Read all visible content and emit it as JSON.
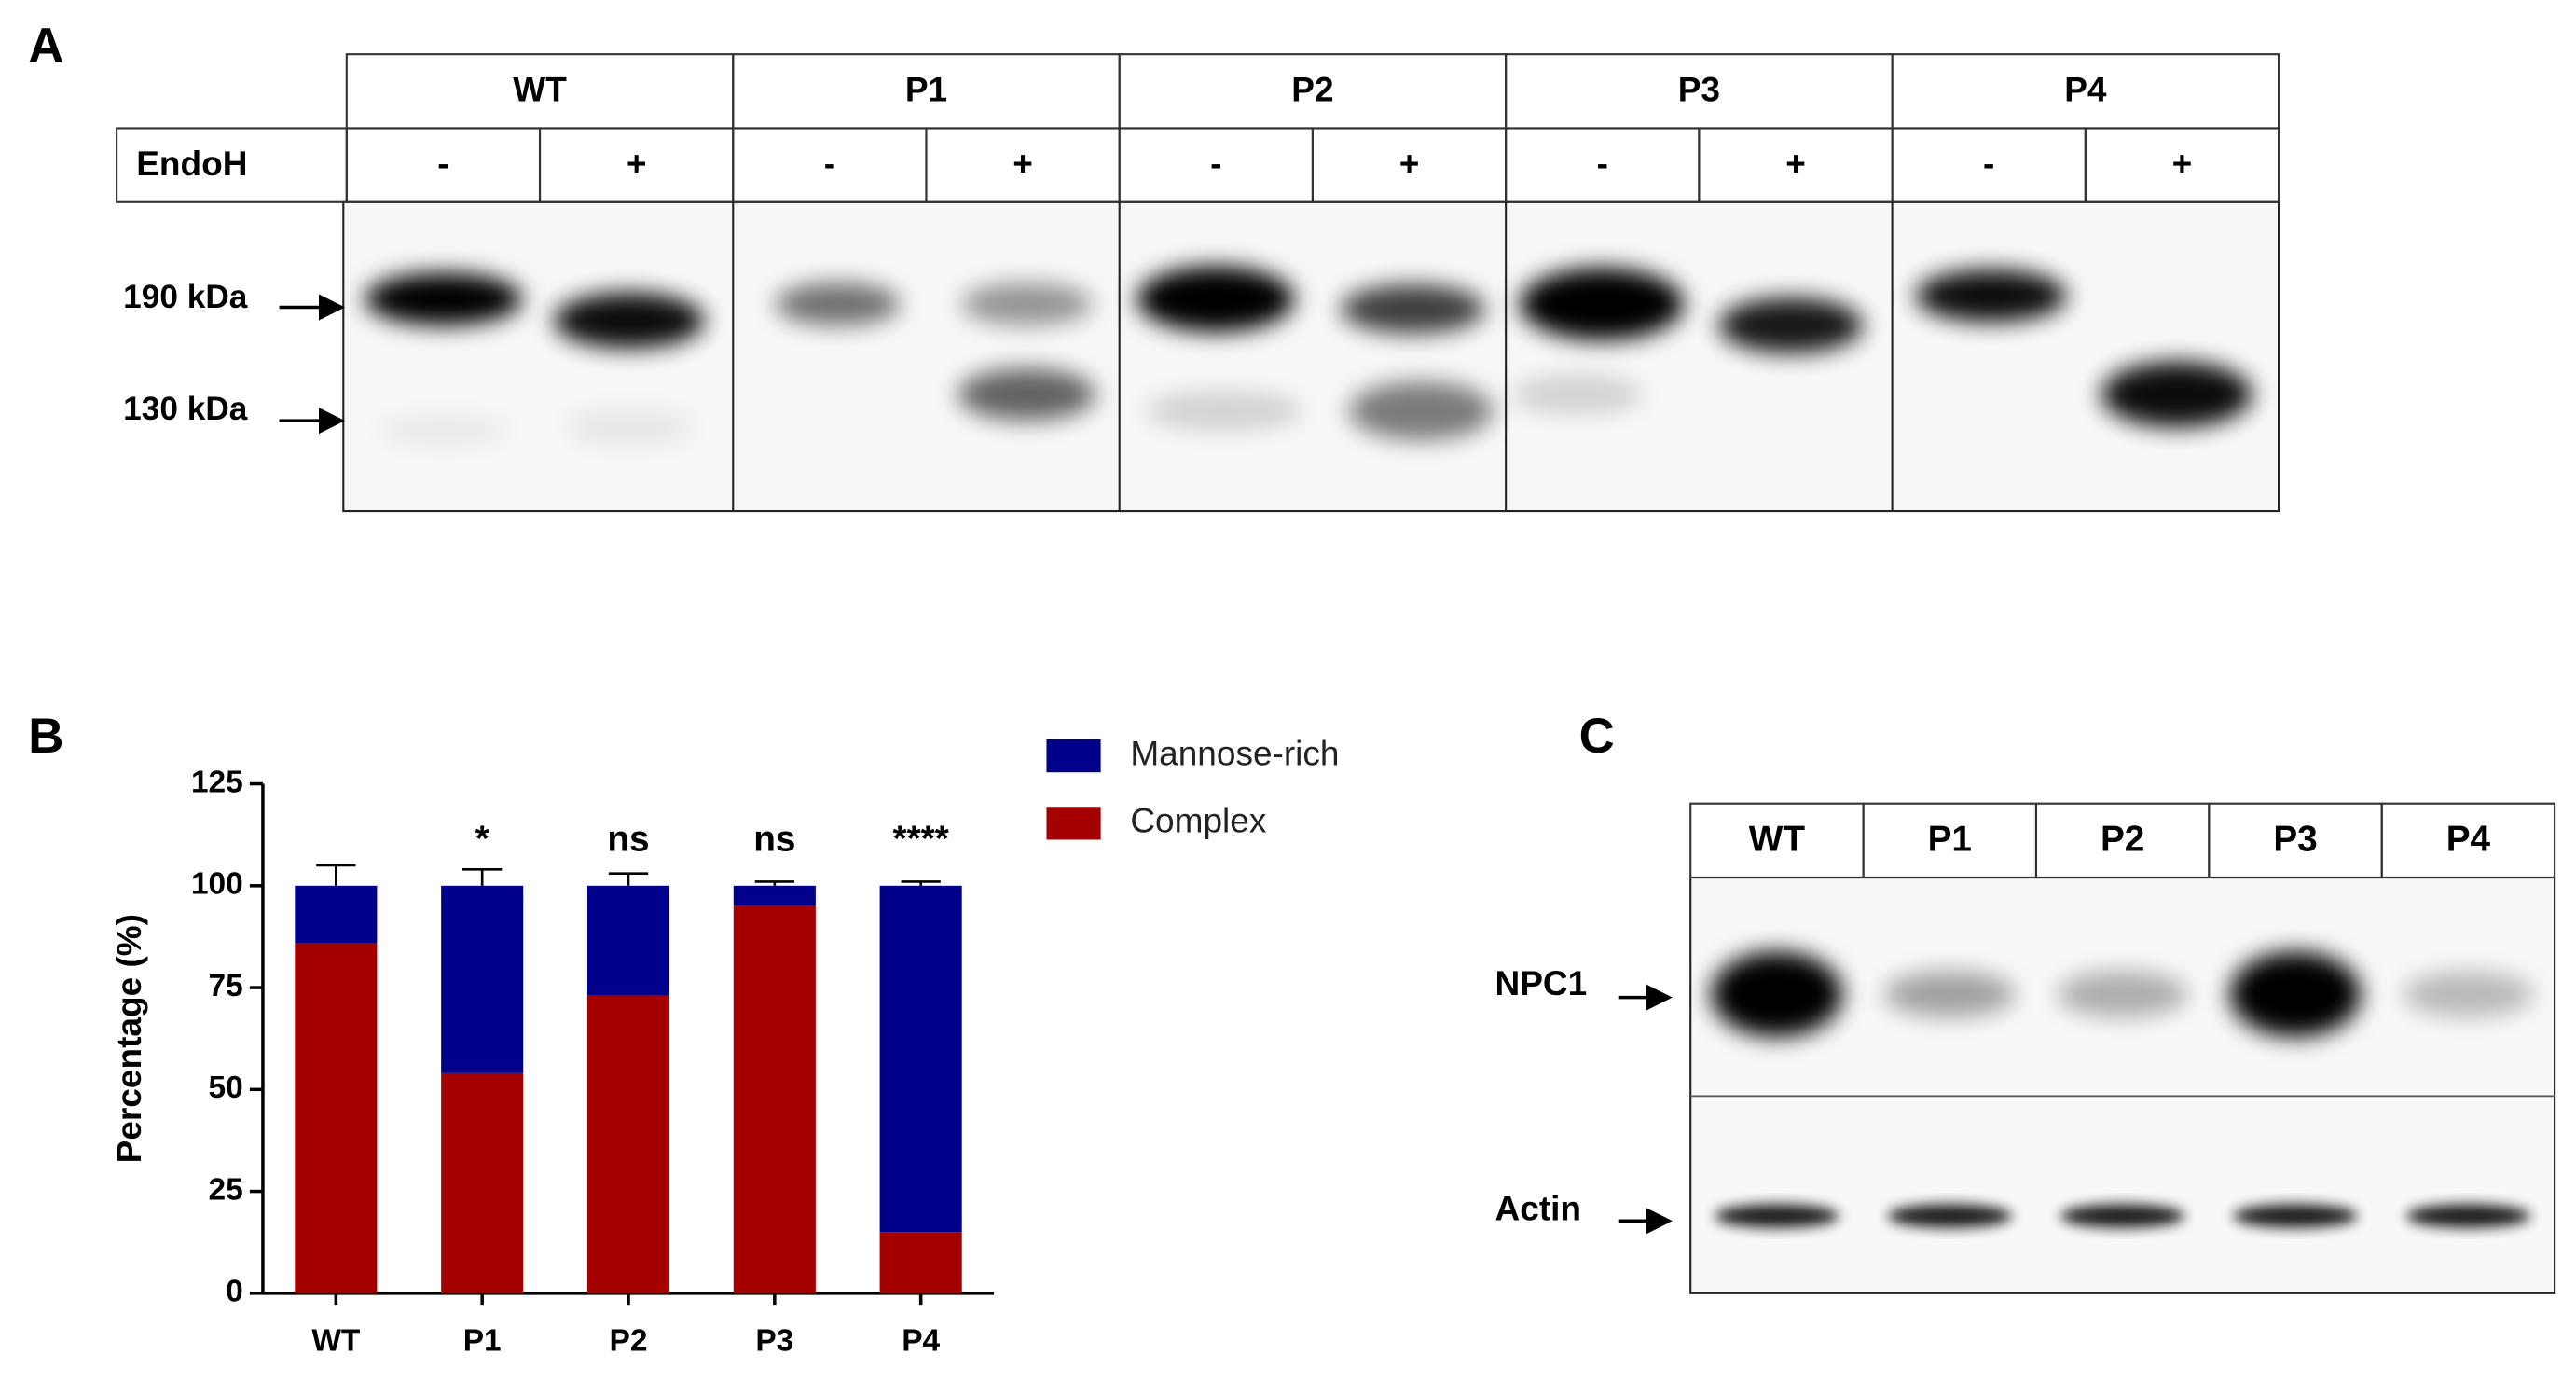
{
  "panel_labels": [
    "A",
    "B",
    "C"
  ],
  "blot_a": {
    "lanes": [
      "WT",
      "P1",
      "P2",
      "P3",
      "P4"
    ],
    "treatment_label": "EndoH",
    "treatments": [
      "-",
      "+"
    ],
    "markers": [
      "190 kDa",
      "130 kDa"
    ]
  },
  "blot_c": {
    "lanes": [
      "WT",
      "P1",
      "P2",
      "P3",
      "P4"
    ],
    "rows": [
      "NPC1",
      "Actin"
    ]
  },
  "chart_data": {
    "type": "stacked_bar",
    "ylabel": "Percentage (%)",
    "categories": [
      "WT",
      "P1",
      "P2",
      "P3",
      "P4"
    ],
    "series": [
      {
        "name": "Complex",
        "color": "#a50000",
        "values": [
          86,
          54,
          73,
          95,
          15
        ]
      },
      {
        "name": "Mannose-rich",
        "color": "#00008b",
        "values": [
          14,
          46,
          27,
          5,
          85
        ],
        "errors": [
          5,
          4,
          3,
          1,
          1
        ]
      }
    ],
    "annotations": [
      null,
      "*",
      "ns",
      "ns",
      "****"
    ],
    "ylim": [
      0,
      125
    ],
    "yticks": [
      0,
      25,
      50,
      75,
      100,
      125
    ]
  }
}
